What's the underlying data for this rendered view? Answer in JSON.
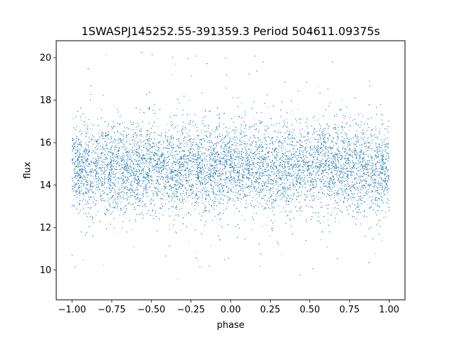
{
  "chart_data": {
    "type": "scatter",
    "title": "1SWASPJ145252.55-391359.3 Period 504611.09375s",
    "xlabel": "phase",
    "ylabel": "flux",
    "xlim": [
      -1.1,
      1.1
    ],
    "ylim": [
      8.6,
      20.8
    ],
    "xticks": [
      -1.0,
      -0.75,
      -0.5,
      -0.25,
      0.0,
      0.25,
      0.5,
      0.75,
      1.0
    ],
    "xtick_labels": [
      "−1.00",
      "−0.75",
      "−0.50",
      "−0.25",
      "0.00",
      "0.25",
      "0.50",
      "0.75",
      "1.00"
    ],
    "yticks": [
      10,
      12,
      14,
      16,
      18,
      20
    ],
    "ytick_labels": [
      "10",
      "12",
      "14",
      "16",
      "18",
      "20"
    ],
    "grid": false,
    "legend": "none",
    "marker_color": "#1f77b4",
    "series": [
      {
        "x_range": [
          -1.0,
          1.0
        ],
        "central_flux": 14.8,
        "dense_band": [
          12.5,
          16.7
        ],
        "sparse_range": [
          9.1,
          20.3
        ]
      }
    ]
  }
}
